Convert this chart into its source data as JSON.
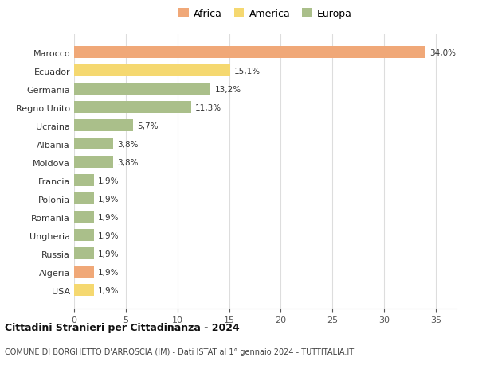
{
  "countries": [
    "Marocco",
    "Ecuador",
    "Germania",
    "Regno Unito",
    "Ucraina",
    "Albania",
    "Moldova",
    "Francia",
    "Polonia",
    "Romania",
    "Ungheria",
    "Russia",
    "Algeria",
    "USA"
  ],
  "values": [
    34.0,
    15.1,
    13.2,
    11.3,
    5.7,
    3.8,
    3.8,
    1.9,
    1.9,
    1.9,
    1.9,
    1.9,
    1.9,
    1.9
  ],
  "labels": [
    "34,0%",
    "15,1%",
    "13,2%",
    "11,3%",
    "5,7%",
    "3,8%",
    "3,8%",
    "1,9%",
    "1,9%",
    "1,9%",
    "1,9%",
    "1,9%",
    "1,9%",
    "1,9%"
  ],
  "continents": [
    "Africa",
    "America",
    "Europa",
    "Europa",
    "Europa",
    "Europa",
    "Europa",
    "Europa",
    "Europa",
    "Europa",
    "Europa",
    "Europa",
    "Africa",
    "America"
  ],
  "colors": {
    "Africa": "#F0A878",
    "America": "#F5D870",
    "Europa": "#AABF8A"
  },
  "xlim": [
    0,
    37
  ],
  "xticks": [
    0,
    5,
    10,
    15,
    20,
    25,
    30,
    35
  ],
  "title": "Cittadini Stranieri per Cittadinanza - 2024",
  "subtitle": "COMUNE DI BORGHETTO D'ARROSCIA (IM) - Dati ISTAT al 1° gennaio 2024 - TUTTITALIA.IT",
  "background_color": "#ffffff",
  "bar_height": 0.65,
  "grid_color": "#dddddd",
  "legend_order": [
    "Africa",
    "America",
    "Europa"
  ]
}
